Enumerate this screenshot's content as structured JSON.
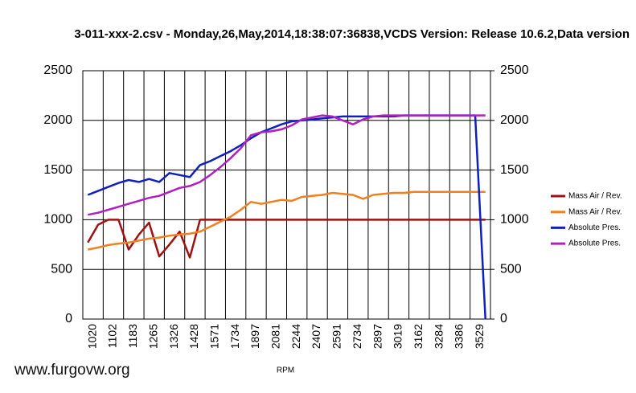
{
  "chart_data": {
    "type": "line",
    "title": "3-011-xxx-2.csv - Monday,26,May,2014,18:38:07:36838,VCDS Version: Release 10.6.2,Data version",
    "x_label": "RPM",
    "watermark": "www.furgovw.org",
    "categories": [
      "1020",
      null,
      "1102",
      null,
      "1183",
      null,
      "1265",
      null,
      "1326",
      null,
      "1428",
      null,
      "1571",
      null,
      "1734",
      null,
      "1897",
      null,
      "2081",
      null,
      "2244",
      null,
      "2407",
      null,
      "2591",
      null,
      "2734",
      null,
      "2897",
      null,
      "3019",
      null,
      "3162",
      null,
      "3284",
      null,
      "3386",
      null,
      "3529",
      null
    ],
    "series": [
      {
        "name": "Mass Air / Rev.",
        "color": "#a01010",
        "values": [
          770,
          950,
          1000,
          1000,
          700,
          850,
          970,
          630,
          750,
          880,
          620,
          1000,
          1000,
          1000,
          1000,
          1000,
          1000,
          1000,
          1000,
          1000,
          1000,
          1000,
          1000,
          1000,
          1000,
          1000,
          1000,
          1000,
          1000,
          1000,
          1000,
          1000,
          1000,
          1000,
          1000,
          1000,
          1000,
          1000,
          1000,
          1000
        ]
      },
      {
        "name": "Mass Air / Rev.",
        "color": "#f08020",
        "values": [
          700,
          720,
          745,
          760,
          770,
          790,
          810,
          820,
          840,
          850,
          860,
          880,
          930,
          980,
          1030,
          1100,
          1180,
          1160,
          1180,
          1200,
          1190,
          1230,
          1240,
          1250,
          1270,
          1260,
          1250,
          1210,
          1250,
          1260,
          1270,
          1270,
          1280,
          1280,
          1280,
          1280,
          1280,
          1280,
          1280,
          1280
        ]
      },
      {
        "name": "Absolute Pres.",
        "color": "#1020c0",
        "values": [
          1250,
          1290,
          1330,
          1370,
          1400,
          1380,
          1410,
          1380,
          1470,
          1450,
          1430,
          1550,
          1590,
          1640,
          1690,
          1750,
          1820,
          1880,
          1920,
          1960,
          1990,
          2000,
          2010,
          2020,
          2030,
          2040,
          2040,
          2040,
          2040,
          2040,
          2040,
          2050,
          2050,
          2050,
          2050,
          2050,
          2050,
          2050,
          2050,
          0
        ]
      },
      {
        "name": "Absolute Pres.",
        "color": "#b020c0",
        "values": [
          1050,
          1070,
          1100,
          1130,
          1160,
          1190,
          1220,
          1240,
          1280,
          1320,
          1340,
          1380,
          1450,
          1530,
          1620,
          1720,
          1850,
          1880,
          1890,
          1910,
          1950,
          2010,
          2030,
          2050,
          2040,
          2000,
          1960,
          2010,
          2040,
          2050,
          2050,
          2050,
          2050,
          2050,
          2050,
          2050,
          2050,
          2050,
          2050,
          2050
        ]
      }
    ],
    "ylim": [
      0,
      2500
    ],
    "yticks": [
      0,
      500,
      1000,
      1500,
      2000,
      2500
    ],
    "y2lim": [
      0,
      2500
    ],
    "y2ticks": [
      0,
      500,
      1000,
      1500,
      2000,
      2500
    ],
    "grid": true,
    "legend": "right"
  }
}
